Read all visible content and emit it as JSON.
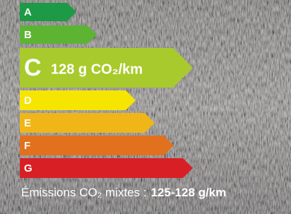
{
  "bands": [
    {
      "label": "A",
      "color": "#1c9a45"
    },
    {
      "label": "B",
      "color": "#5db433"
    },
    {
      "label": "C",
      "detail": "128 g CO₂/km",
      "color": "#a9ca2c"
    },
    {
      "label": "D",
      "color": "#f6e500"
    },
    {
      "label": "E",
      "color": "#f0b517"
    },
    {
      "label": "F",
      "color": "#e2711d"
    },
    {
      "label": "G",
      "color": "#d91f26"
    }
  ],
  "footer": {
    "text": "Émissions CO₂ mixtes :",
    "value": "125-128 g/km"
  }
}
